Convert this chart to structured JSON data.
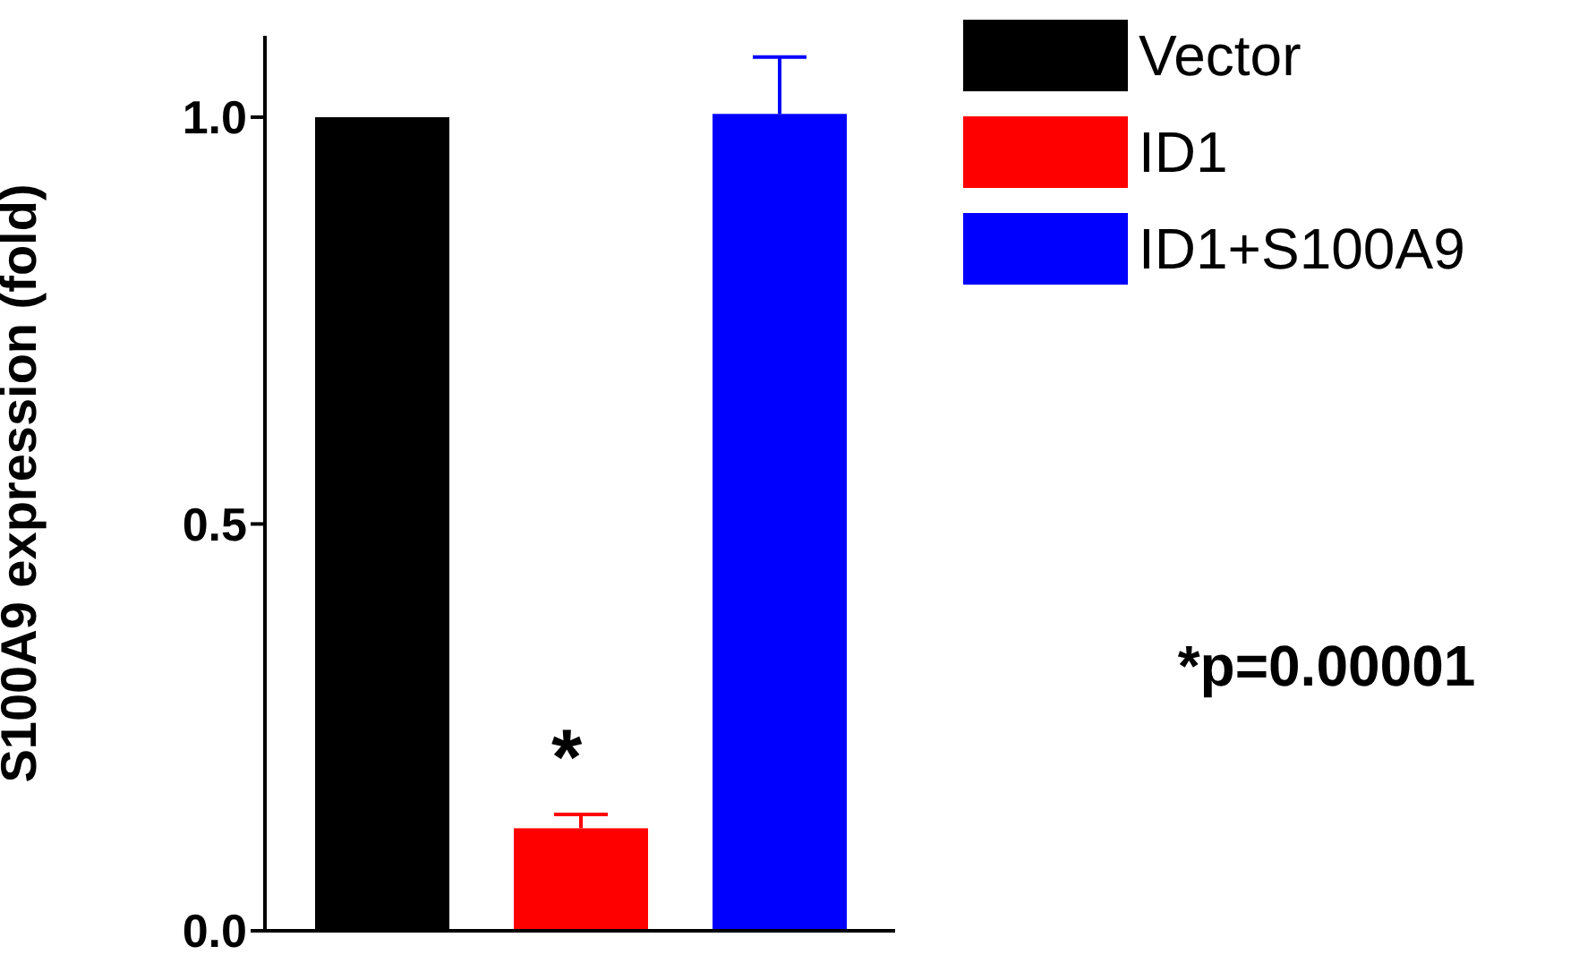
{
  "chart_data": {
    "type": "bar",
    "ylabel": "S100A9 expression (fold)",
    "categories": [
      null
    ],
    "series": [
      {
        "name": "Vector",
        "color": "#000000",
        "values": [
          1.0
        ]
      },
      {
        "name": "ID1",
        "color": "#ff0000",
        "values": [
          0.126
        ],
        "errors": [
          0.017
        ]
      },
      {
        "name": "ID1+S100A9",
        "color": "#0000ff",
        "values": [
          1.004
        ],
        "errors": [
          0.07
        ]
      }
    ],
    "ylim": [
      0,
      1.1
    ],
    "yticks": [
      {
        "value": 0,
        "label": "0.0"
      },
      {
        "value": 0.5,
        "label": "0.5"
      },
      {
        "value": 1,
        "label": "1.0"
      }
    ],
    "grid": false,
    "legend": "top right",
    "annotations": [
      "*",
      "*p=0.00001"
    ]
  }
}
